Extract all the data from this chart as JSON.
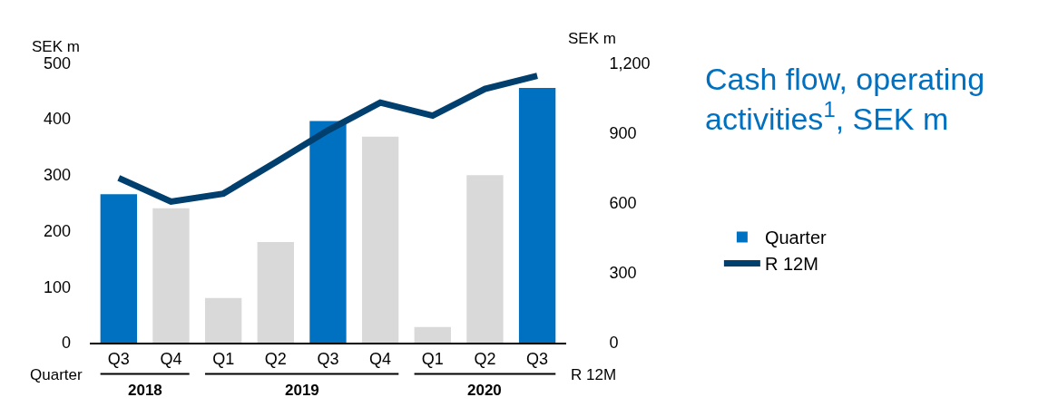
{
  "chart_data": {
    "type": "bar",
    "title": "Cash flow, operating activities$^{1}$, SEK m",
    "ylabel": "SEK m",
    "y2label": "SEK m",
    "categories": [
      "Q3",
      "Q4",
      "Q1",
      "Q2",
      "Q3",
      "Q4",
      "Q1",
      "Q2",
      "Q3"
    ],
    "series": [
      {
        "name": "Quarter",
        "color": "#d9d9d9",
        "colors": [
          "#0070c0",
          "#d9d9d9",
          "#d9d9d9",
          "#d9d9d9",
          "#0070c0",
          "#d9d9d9",
          "#d9d9d9",
          "#d9d9d9",
          "#0070c0"
        ],
        "values": [
          265,
          240,
          80,
          180,
          396,
          368,
          28,
          299,
          455
        ]
      },
      {
        "name": "R 12M",
        "type": "line",
        "axis": "y2",
        "color": "#003f6e",
        "values": [
          706,
          605,
          639,
          773,
          910,
          1029,
          973,
          1088,
          1144
        ]
      }
    ],
    "ylim": [
      0,
      500
    ],
    "yticks": [
      0,
      100,
      200,
      300,
      400,
      500
    ],
    "y2lim": [
      0,
      1200
    ],
    "y2ticks": [
      0,
      300,
      600,
      900,
      {
        "value": 1200,
        "label": "1,200"
      }
    ],
    "annotations": [
      "Quarter",
      "R 12M",
      "2018",
      "2019",
      "2020"
    ],
    "legend": "right"
  }
}
